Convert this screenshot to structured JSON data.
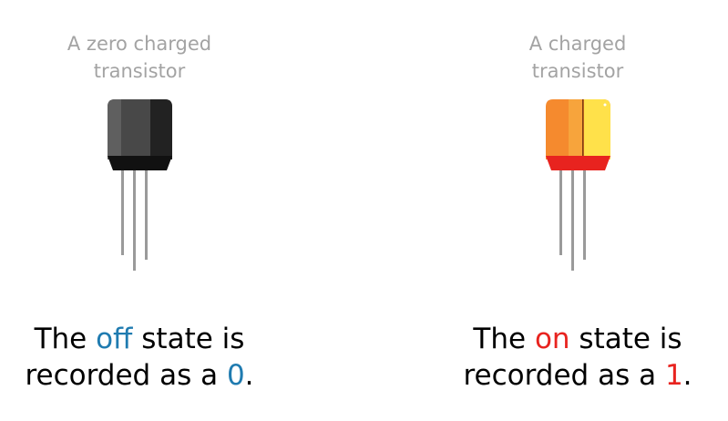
{
  "panels": {
    "off": {
      "caption_line1": "A zero charged",
      "caption_line2": "transistor",
      "line1_pre": "The ",
      "line1_word": "off",
      "line1_post": " state is",
      "line2_pre": "recorded as a ",
      "line2_value": "0",
      "line2_post": ".",
      "highlight_color": "#1f7bb0",
      "transistor_state": "uncharged",
      "body_colors": [
        "#555555",
        "#3e3e3e",
        "#222222"
      ]
    },
    "on": {
      "caption_line1": "A charged",
      "caption_line2": "transistor",
      "line1_pre": "The ",
      "line1_word": "on",
      "line1_post": " state is",
      "line2_pre": "recorded as a ",
      "line2_value": "1",
      "line2_post": ".",
      "highlight_color": "#e8231f",
      "transistor_state": "charged",
      "body_colors": [
        "#f58a2e",
        "#f7a43c",
        "#ffe14a",
        "#e8231f"
      ]
    }
  }
}
